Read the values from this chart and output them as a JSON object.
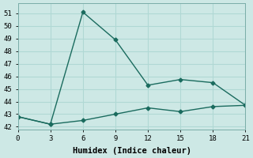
{
  "title": "",
  "xlabel": "Humidex (Indice chaleur)",
  "ylabel": "",
  "background_color": "#cde8e5",
  "grid_color": "#b0d8d4",
  "line_color": "#1a6b5e",
  "xlim": [
    0,
    21
  ],
  "ylim": [
    41.8,
    51.8
  ],
  "xticks": [
    0,
    3,
    6,
    9,
    12,
    15,
    18,
    21
  ],
  "yticks": [
    42,
    43,
    44,
    45,
    46,
    47,
    48,
    49,
    50,
    51
  ],
  "series1_x": [
    0,
    3,
    6,
    9,
    12,
    15,
    18,
    21
  ],
  "series1_y": [
    42.8,
    42.2,
    51.1,
    48.9,
    45.3,
    45.75,
    45.5,
    43.7
  ],
  "series2_x": [
    0,
    3,
    6,
    9,
    12,
    15,
    18,
    21
  ],
  "series2_y": [
    42.8,
    42.2,
    42.5,
    43.0,
    43.5,
    43.2,
    43.6,
    43.7
  ],
  "marker": "D",
  "marker_size": 2.5,
  "line_width": 1.0,
  "font_family": "monospace",
  "tick_fontsize": 6.5,
  "label_fontsize": 7.5
}
